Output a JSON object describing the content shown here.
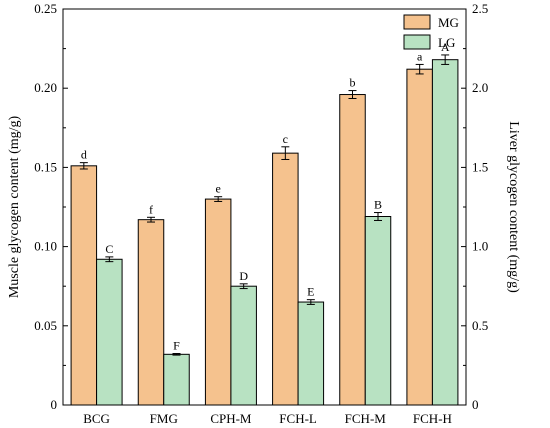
{
  "chart_data": {
    "type": "bar",
    "categories": [
      "BCG",
      "FMG",
      "CPH-M",
      "FCH-L",
      "FCH-M",
      "FCH-H"
    ],
    "series": [
      {
        "name": "MG",
        "axis": "left",
        "color": "#F5C28E",
        "values": [
          0.151,
          0.117,
          0.13,
          0.159,
          0.196,
          0.212
        ],
        "errors": [
          0.002,
          0.0015,
          0.0015,
          0.004,
          0.0025,
          0.003
        ],
        "labels": [
          "d",
          "f",
          "e",
          "c",
          "b",
          "a"
        ]
      },
      {
        "name": "LG",
        "axis": "right",
        "color": "#B8E2C2",
        "values": [
          0.92,
          0.32,
          0.75,
          0.65,
          1.19,
          2.18
        ],
        "errors": [
          0.015,
          0.005,
          0.015,
          0.015,
          0.025,
          0.03
        ],
        "labels": [
          "C",
          "F",
          "D",
          "E",
          "B",
          "A"
        ]
      }
    ],
    "ylabel": "Muscle glycogen content (mg/g)",
    "ylabel_right": "Liver glycogen content (mg/g)",
    "ylim": [
      0,
      0.25
    ],
    "ylim_right": [
      0,
      2.5
    ],
    "yticks": [
      "0",
      "0.05",
      "0.10",
      "0.15",
      "0.20",
      "0.25"
    ],
    "yticks_right": [
      "0",
      "0.5",
      "1.0",
      "1.5",
      "2.0",
      "2.5"
    ],
    "legend_position": "top-right",
    "grid": false
  }
}
